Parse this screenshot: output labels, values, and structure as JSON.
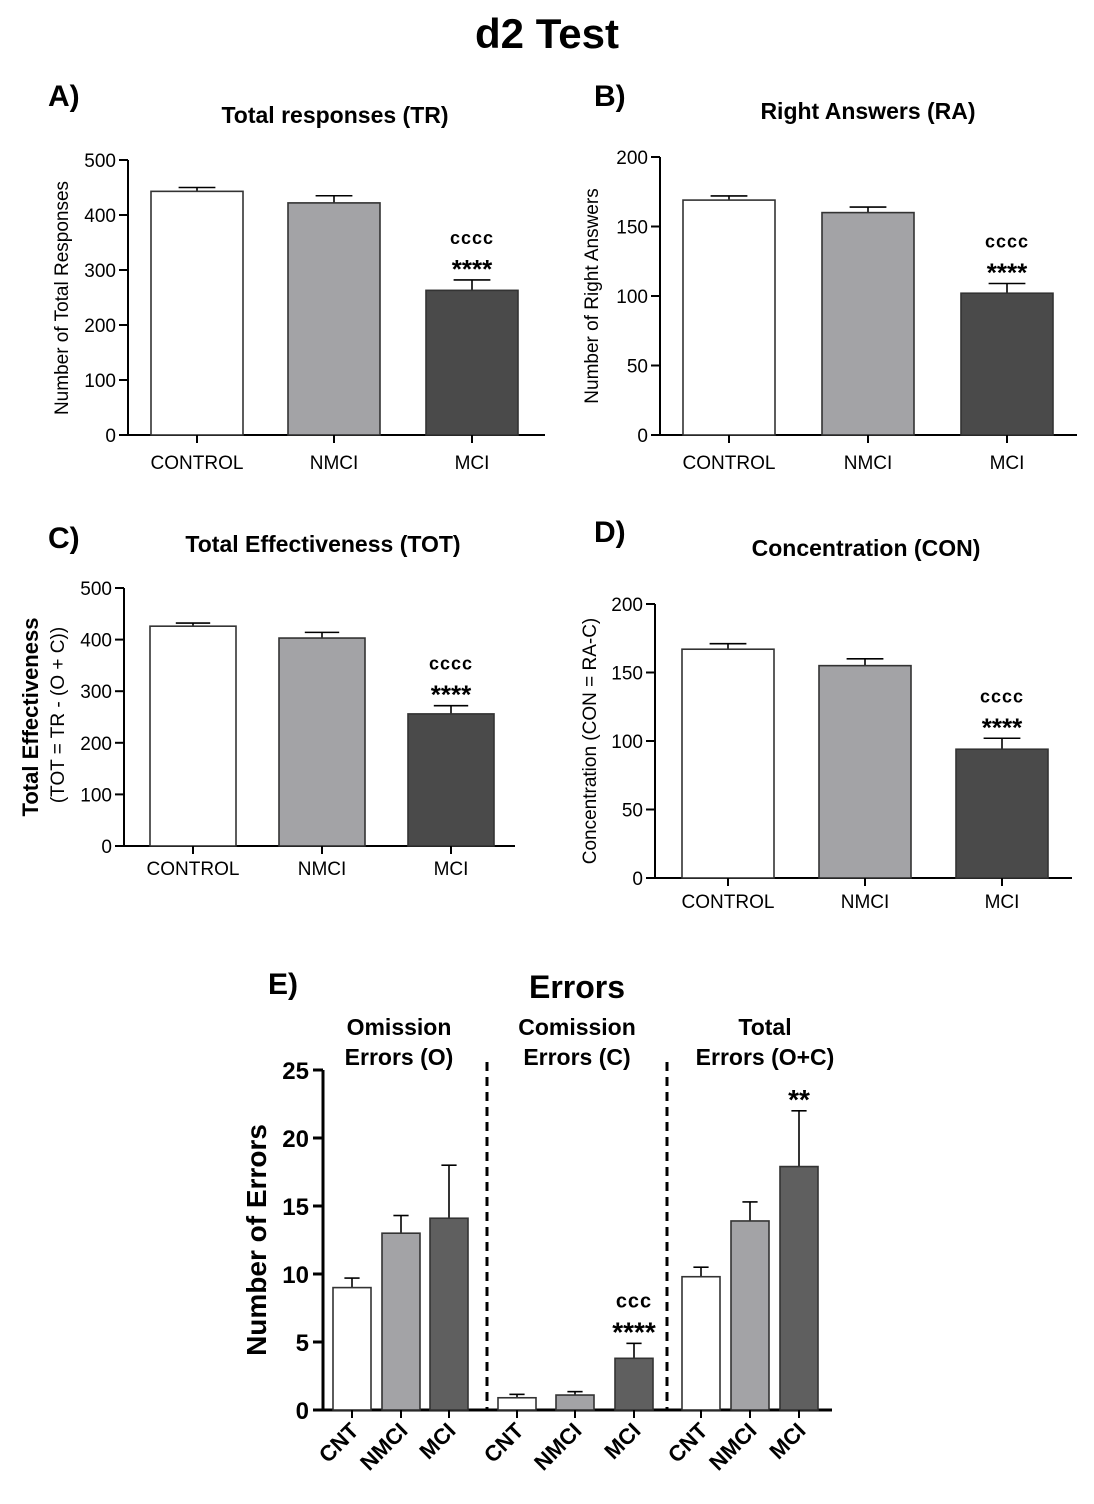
{
  "figure_title": "d2 Test",
  "colors": {
    "control": "#ffffff",
    "nmci": "#a3a3a6",
    "mci": "#4a4a4a",
    "mci_errors": "#5f5f5f",
    "stroke": "#000000"
  },
  "chart_data": [
    {
      "type": "bar",
      "panel": "A)",
      "title": "Total responses (TR)",
      "ylabel": "Number of Total Responses",
      "ylim": [
        0,
        500
      ],
      "yticks": [
        0,
        100,
        200,
        300,
        400,
        500
      ],
      "categories": [
        "CONTROL",
        "NMCI",
        "MCI"
      ],
      "values": [
        443,
        422,
        263
      ],
      "errors": [
        7,
        13,
        19
      ],
      "annotations": [
        {
          "category": "MCI",
          "lines": [
            "cccc",
            "****"
          ]
        }
      ]
    },
    {
      "type": "bar",
      "panel": "B)",
      "title": "Right Answers (RA)",
      "ylabel": "Number of Right Answers",
      "ylim": [
        0,
        200
      ],
      "yticks": [
        0,
        50,
        100,
        150,
        200
      ],
      "categories": [
        "CONTROL",
        "NMCI",
        "MCI"
      ],
      "values": [
        169,
        160,
        102
      ],
      "errors": [
        3,
        4,
        7
      ],
      "annotations": [
        {
          "category": "MCI",
          "lines": [
            "cccc",
            "****"
          ]
        }
      ]
    },
    {
      "type": "bar",
      "panel": "C)",
      "title": "Total Effectiveness (TOT)",
      "ylabel": [
        "Total Effectiveness",
        "(TOT = TR - (O + C))"
      ],
      "ylim": [
        0,
        500
      ],
      "yticks": [
        0,
        100,
        200,
        300,
        400,
        500
      ],
      "categories": [
        "CONTROL",
        "NMCI",
        "MCI"
      ],
      "values": [
        426,
        403,
        256
      ],
      "errors": [
        6,
        11,
        16
      ],
      "annotations": [
        {
          "category": "MCI",
          "lines": [
            "cccc",
            "****"
          ]
        }
      ]
    },
    {
      "type": "bar",
      "panel": "D)",
      "title": "Concentration (CON)",
      "ylabel": "Concentration (CON = RA-C)",
      "ylim": [
        0,
        200
      ],
      "yticks": [
        0,
        50,
        100,
        150,
        200
      ],
      "categories": [
        "CONTROL",
        "NMCI",
        "MCI"
      ],
      "values": [
        167,
        155,
        94
      ],
      "errors": [
        4,
        5,
        8
      ],
      "annotations": [
        {
          "category": "MCI",
          "lines": [
            "cccc",
            "****"
          ]
        }
      ]
    },
    {
      "type": "bar",
      "panel": "E)",
      "title": "Errors",
      "ylabel": "Number of Errors",
      "ylim": [
        0,
        25
      ],
      "yticks": [
        0,
        5,
        10,
        15,
        20,
        25
      ],
      "groups": [
        {
          "title": [
            "Omission",
            "Errors (O)"
          ],
          "categories": [
            "CNT",
            "NMCI",
            "MCI"
          ],
          "values": [
            9.0,
            13.0,
            14.1
          ],
          "errors": [
            0.7,
            1.3,
            3.9
          ],
          "annotations": []
        },
        {
          "title": [
            "Comission",
            "Errors (C)"
          ],
          "categories": [
            "CNT",
            "NMCI",
            "MCI"
          ],
          "values": [
            0.9,
            1.1,
            3.8
          ],
          "errors": [
            0.25,
            0.25,
            1.1
          ],
          "annotations": [
            {
              "category": "MCI",
              "lines": [
                "ccc",
                "****"
              ]
            }
          ]
        },
        {
          "title": [
            "Total",
            "Errors (O+C)"
          ],
          "categories": [
            "CNT",
            "NMCI",
            "MCI"
          ],
          "values": [
            9.8,
            13.9,
            17.9
          ],
          "errors": [
            0.7,
            1.4,
            4.1
          ],
          "annotations": [
            {
              "category": "MCI",
              "lines": [
                "**"
              ]
            }
          ]
        }
      ]
    }
  ]
}
